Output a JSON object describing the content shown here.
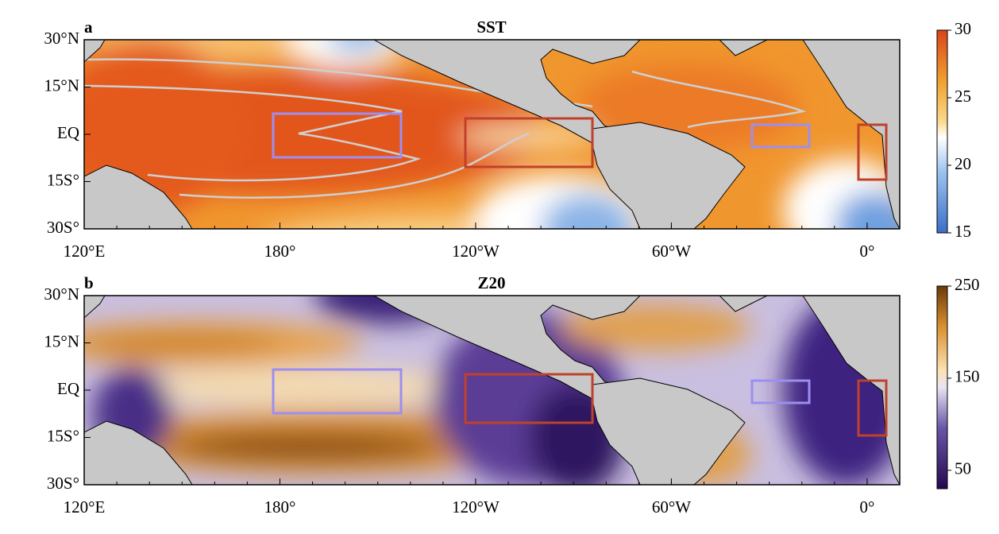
{
  "panels": [
    {
      "label": "a",
      "title": "SST",
      "colorbar": {
        "lim": [
          15,
          30
        ],
        "ticks": [
          15,
          20,
          25,
          30
        ]
      }
    },
    {
      "label": "b",
      "title": "Z20",
      "colorbar": {
        "lim": [
          30,
          250
        ],
        "ticks": [
          50,
          150,
          250
        ]
      }
    }
  ],
  "axes": {
    "xlim": [
      120,
      370
    ],
    "ylim": [
      -30,
      30
    ],
    "xticks": [
      {
        "value": 120,
        "label": "120°E"
      },
      {
        "value": 180,
        "label": "180°"
      },
      {
        "value": 240,
        "label": "120°W"
      },
      {
        "value": 300,
        "label": "60°W"
      },
      {
        "value": 360,
        "label": "0°"
      }
    ],
    "yticks": [
      {
        "value": 30,
        "label": "30°N"
      },
      {
        "value": 15,
        "label": "15°N"
      },
      {
        "value": 0,
        "label": "EQ"
      },
      {
        "value": -15,
        "label": "15S°"
      },
      {
        "value": -30,
        "label": "30S°"
      }
    ]
  }
}
